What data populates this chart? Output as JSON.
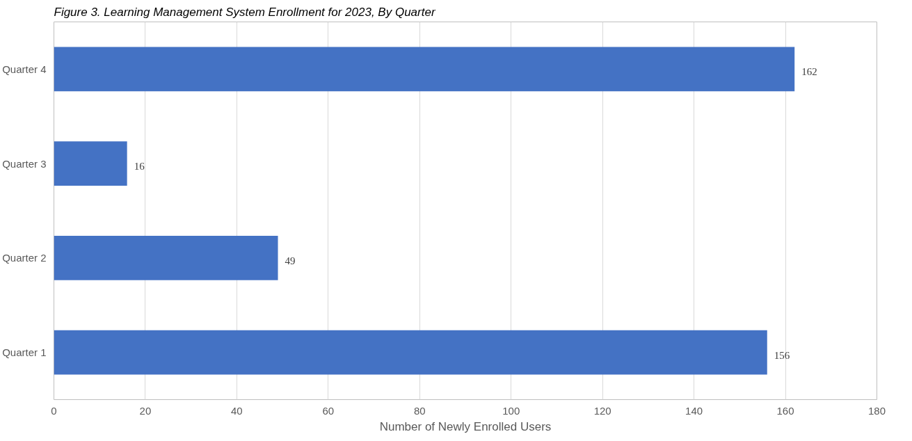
{
  "chart_data": {
    "type": "bar",
    "orientation": "horizontal",
    "title": "Figure 3. Learning Management System Enrollment for 2023, By Quarter",
    "xlabel": "Number of Newly Enrolled Users",
    "categories": [
      "Quarter 4",
      "Quarter 3",
      "Quarter 2",
      "Quarter 1"
    ],
    "values": [
      162,
      16,
      49,
      156
    ],
    "color": "#4472c4",
    "xlim": [
      0,
      180
    ],
    "xticks": [
      0,
      20,
      40,
      60,
      80,
      100,
      120,
      140,
      160,
      180
    ],
    "grid": "x",
    "data_labels": true
  }
}
